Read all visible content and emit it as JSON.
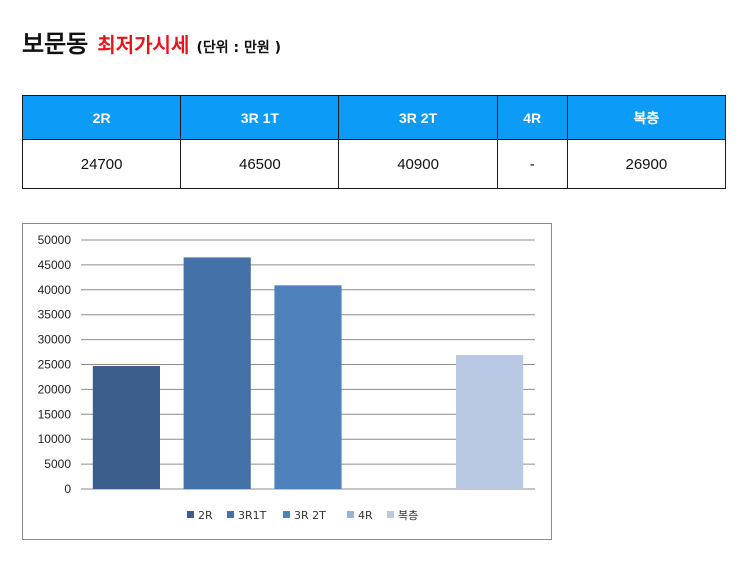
{
  "header": {
    "place": "보문동",
    "subject": "최저가시세",
    "unit": "(단위 : 만원 )"
  },
  "table": {
    "columns": [
      "2R",
      "3R 1T",
      "3R 2T",
      "4R",
      "복층"
    ],
    "values": [
      "24700",
      "46500",
      "40900",
      "-",
      "26900"
    ]
  },
  "chart_data": {
    "type": "bar",
    "categories": [
      "2R",
      "3R1T",
      "3R 2T",
      "4R",
      "복층"
    ],
    "values": [
      24700,
      46500,
      40900,
      null,
      26900
    ],
    "colors": [
      "#3b5e8c",
      "#4472a8",
      "#4f81bd",
      "#95b3d7",
      "#b9c8e3"
    ],
    "ylim": [
      0,
      50000
    ],
    "yticks": [
      "50000",
      "45000",
      "40000",
      "35000",
      "30000",
      "25000",
      "20000",
      "15000",
      "10000",
      "5000",
      "0"
    ],
    "legend": [
      "2R",
      "3R1T",
      "3R 2T",
      "4R",
      "복층"
    ],
    "legend_position": "bottom",
    "grid": true,
    "title": "",
    "xlabel": "",
    "ylabel": ""
  }
}
